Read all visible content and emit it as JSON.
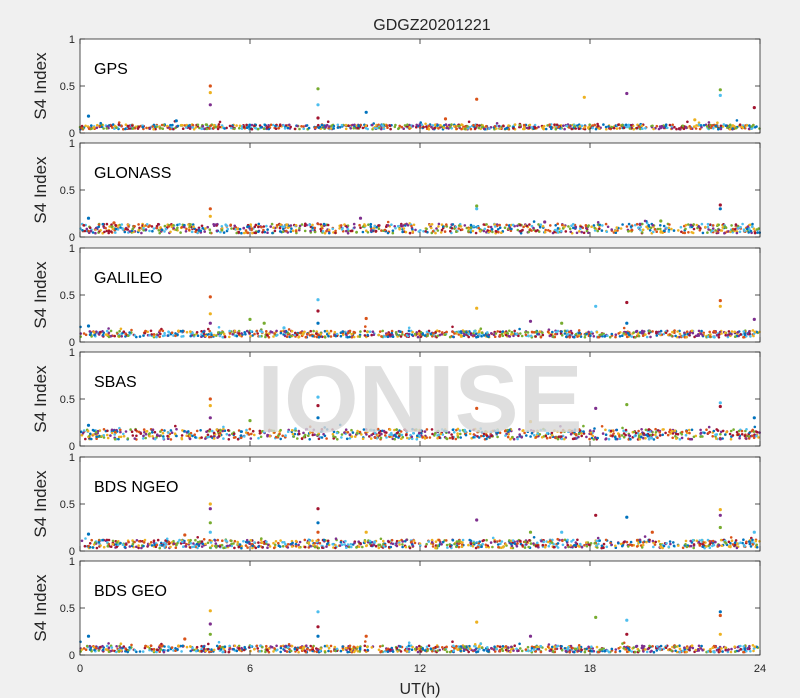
{
  "figure_title": "GDGZ20201221",
  "watermark": "IONISE",
  "colors": [
    "#0072BD",
    "#D95319",
    "#EDB120",
    "#7E2F8E",
    "#77AC30",
    "#4DBEEE",
    "#A2142F"
  ],
  "chart_data": [
    {
      "type": "scatter",
      "panel_label": "GPS",
      "ylabel": "S4 Index",
      "xlim": [
        0,
        24
      ],
      "ylim": [
        0,
        1
      ],
      "yticks": [
        0,
        0.5,
        1
      ],
      "ytick_labels": [
        "0",
        "0.5",
        "1"
      ],
      "grid": false,
      "baseline": [
        0.04,
        0.09
      ],
      "series": [
        {
          "values": [
            [
              0.3,
              0.18
            ],
            [
              4.6,
              0.5
            ],
            [
              4.6,
              0.43
            ],
            [
              4.6,
              0.3
            ],
            [
              8.4,
              0.47
            ],
            [
              8.4,
              0.3
            ],
            [
              8.4,
              0.16
            ],
            [
              10.1,
              0.22
            ],
            [
              14,
              0.36
            ],
            [
              17.8,
              0.38
            ],
            [
              19.3,
              0.42
            ],
            [
              22.6,
              0.46
            ],
            [
              22.6,
              0.4
            ],
            [
              23.8,
              0.27
            ],
            [
              3.4,
              0.13
            ],
            [
              12.9,
              0.15
            ],
            [
              21.7,
              0.14
            ]
          ]
        }
      ]
    },
    {
      "type": "scatter",
      "panel_label": "GLONASS",
      "ylabel": "S4 Index",
      "xlim": [
        0,
        24
      ],
      "ylim": [
        0,
        1
      ],
      "yticks": [
        0,
        0.5,
        1
      ],
      "ytick_labels": [
        "0",
        "0.5",
        "1"
      ],
      "grid": false,
      "baseline": [
        0.04,
        0.14
      ],
      "series": [
        {
          "values": [
            [
              0.3,
              0.2
            ],
            [
              4.6,
              0.3
            ],
            [
              4.6,
              0.22
            ],
            [
              9.9,
              0.2
            ],
            [
              14,
              0.33
            ],
            [
              14,
              0.3
            ],
            [
              22.6,
              0.34
            ],
            [
              22.6,
              0.3
            ],
            [
              1.2,
              0.15
            ],
            [
              7.3,
              0.13
            ],
            [
              16.4,
              0.16
            ],
            [
              20.5,
              0.17
            ]
          ]
        }
      ]
    },
    {
      "type": "scatter",
      "panel_label": "GALILEO",
      "ylabel": "S4 Index",
      "xlim": [
        0,
        24
      ],
      "ylim": [
        0,
        1
      ],
      "yticks": [
        0,
        0.5,
        1
      ],
      "ytick_labels": [
        "0",
        "0.5",
        "1"
      ],
      "grid": false,
      "baseline": [
        0.05,
        0.12
      ],
      "series": [
        {
          "values": [
            [
              0.3,
              0.17
            ],
            [
              4.6,
              0.48
            ],
            [
              4.6,
              0.3
            ],
            [
              4.6,
              0.2
            ],
            [
              6,
              0.24
            ],
            [
              8.4,
              0.45
            ],
            [
              8.4,
              0.33
            ],
            [
              8.4,
              0.2
            ],
            [
              10.1,
              0.25
            ],
            [
              14,
              0.36
            ],
            [
              15.9,
              0.22
            ],
            [
              17,
              0.2
            ],
            [
              18.2,
              0.38
            ],
            [
              19.3,
              0.42
            ],
            [
              19.3,
              0.2
            ],
            [
              22.6,
              0.44
            ],
            [
              22.6,
              0.38
            ],
            [
              23.8,
              0.24
            ],
            [
              6.5,
              0.2
            ],
            [
              7.2,
              0.15
            ]
          ]
        }
      ]
    },
    {
      "type": "scatter",
      "panel_label": "SBAS",
      "ylabel": "S4 Index",
      "xlim": [
        0,
        24
      ],
      "ylim": [
        0,
        1
      ],
      "yticks": [
        0,
        0.5,
        1
      ],
      "ytick_labels": [
        "0",
        "0.5",
        "1"
      ],
      "grid": false,
      "baseline": [
        0.07,
        0.18
      ],
      "series": [
        {
          "values": [
            [
              0.3,
              0.22
            ],
            [
              4.6,
              0.5
            ],
            [
              4.6,
              0.43
            ],
            [
              4.6,
              0.3
            ],
            [
              6,
              0.27
            ],
            [
              8.4,
              0.52
            ],
            [
              8.4,
              0.43
            ],
            [
              8.4,
              0.3
            ],
            [
              14,
              0.4
            ],
            [
              15.9,
              0.26
            ],
            [
              18.2,
              0.4
            ],
            [
              19.3,
              0.44
            ],
            [
              22.6,
              0.46
            ],
            [
              22.6,
              0.42
            ],
            [
              23.8,
              0.3
            ]
          ]
        }
      ]
    },
    {
      "type": "scatter",
      "panel_label": "BDS NGEO",
      "ylabel": "S4 Index",
      "xlim": [
        0,
        24
      ],
      "ylim": [
        0,
        1
      ],
      "yticks": [
        0,
        0.5,
        1
      ],
      "ytick_labels": [
        "0",
        "0.5",
        "1"
      ],
      "grid": false,
      "baseline": [
        0.03,
        0.12
      ],
      "series": [
        {
          "values": [
            [
              0.3,
              0.18
            ],
            [
              3.7,
              0.17
            ],
            [
              4.6,
              0.5
            ],
            [
              4.6,
              0.45
            ],
            [
              4.6,
              0.3
            ],
            [
              4.6,
              0.2
            ],
            [
              8.4,
              0.45
            ],
            [
              8.4,
              0.3
            ],
            [
              8.4,
              0.2
            ],
            [
              10.1,
              0.2
            ],
            [
              14,
              0.33
            ],
            [
              15.9,
              0.2
            ],
            [
              17,
              0.2
            ],
            [
              18.2,
              0.38
            ],
            [
              19.3,
              0.36
            ],
            [
              20.2,
              0.2
            ],
            [
              22.6,
              0.44
            ],
            [
              22.6,
              0.38
            ],
            [
              22.6,
              0.25
            ],
            [
              23.8,
              0.2
            ]
          ]
        }
      ]
    },
    {
      "type": "scatter",
      "panel_label": "BDS GEO",
      "ylabel": "S4 Index",
      "xlim": [
        0,
        24
      ],
      "ylim": [
        0,
        1
      ],
      "yticks": [
        0,
        0.5,
        1
      ],
      "ytick_labels": [
        "0",
        "0.5",
        "1"
      ],
      "grid": false,
      "baseline": [
        0.03,
        0.1
      ],
      "series": [
        {
          "values": [
            [
              0.3,
              0.2
            ],
            [
              3.7,
              0.17
            ],
            [
              4.6,
              0.47
            ],
            [
              4.6,
              0.33
            ],
            [
              4.6,
              0.22
            ],
            [
              8.4,
              0.46
            ],
            [
              8.4,
              0.3
            ],
            [
              8.4,
              0.2
            ],
            [
              10.1,
              0.2
            ],
            [
              14,
              0.35
            ],
            [
              15.9,
              0.2
            ],
            [
              18.2,
              0.4
            ],
            [
              19.3,
              0.37
            ],
            [
              19.3,
              0.22
            ],
            [
              22.6,
              0.46
            ],
            [
              22.6,
              0.42
            ],
            [
              22.6,
              0.22
            ]
          ]
        }
      ]
    }
  ],
  "x_axis": {
    "xlabel": "UT(h)",
    "xticks": [
      0,
      6,
      12,
      18,
      24
    ],
    "xtick_labels": [
      "0",
      "6",
      "12",
      "18",
      "24"
    ]
  }
}
